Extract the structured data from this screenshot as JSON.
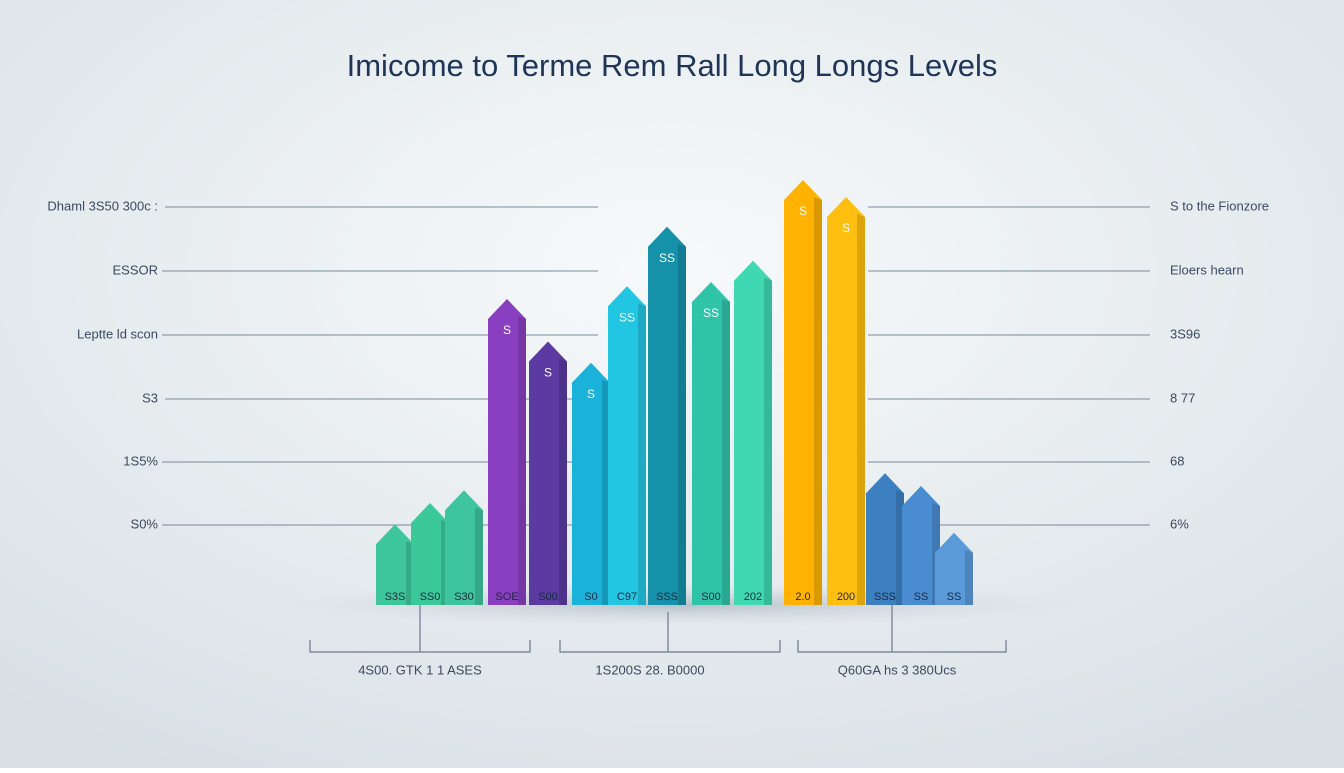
{
  "chart_data": {
    "type": "bar",
    "title": "Imicome to Terme Rem Rall Long Longs Levels",
    "ylim": [
      0,
      100
    ],
    "values": [
      19,
      24,
      27,
      72,
      62,
      57,
      75,
      89,
      76,
      81,
      100,
      96,
      31,
      28,
      17
    ],
    "colors": [
      "#3fc79c",
      "#3cc99a",
      "#3ec59e",
      "#8a3fc0",
      "#5b3aa2",
      "#1ab2d8",
      "#22c6e2",
      "#1592aa",
      "#2fc4a8",
      "#3fd8b2",
      "#ffb300",
      "#ffbf10",
      "#3c80c2",
      "#4a8cd2",
      "#5a9ad8"
    ],
    "bar_labels": [
      "S3S",
      "SS0",
      "S30",
      "SOE",
      "S00",
      "S0",
      "C97",
      "SSS",
      "S00",
      "202",
      "2.0",
      "200",
      "SSS",
      "SS",
      "SS"
    ],
    "tip_labels": [
      "",
      "",
      "",
      "S",
      "S",
      "S",
      "SS",
      "SS",
      "SS",
      "",
      "S",
      "S",
      "",
      "",
      ""
    ],
    "left_labels": [
      "Dhaml 3S50 300c :",
      "ESSOR",
      "Leptte ld scon",
      "S3",
      "1S5%",
      "S0%"
    ],
    "right_labels": [
      "S to the Fionzore",
      "Eloers hearn",
      "3S96",
      "8 77",
      "68",
      "6%"
    ],
    "group_labels": [
      "4S00. GTK 1 1 ASES",
      "1S200S 28. B0000",
      "Q60GA hs 3 380Ucs"
    ]
  }
}
